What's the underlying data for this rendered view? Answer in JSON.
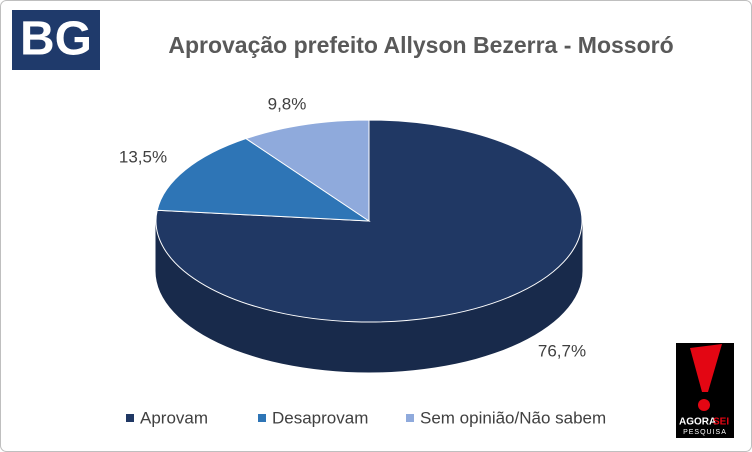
{
  "logos": {
    "left": "BG",
    "right_a": "AGORA",
    "right_b": "SEI",
    "right_c": "PESQUISA"
  },
  "chart_data": {
    "type": "pie",
    "title": "Aprovação prefeito Allyson Bezerra - Mossoró",
    "categories": [
      "Aprovam",
      "Desaprovam",
      "Sem opinião/Não sabem"
    ],
    "values": [
      76.7,
      13.5,
      9.8
    ],
    "value_labels": [
      "76,7%",
      "13,5%",
      "9,8%"
    ],
    "colors": [
      "#203864",
      "#2e75b6",
      "#8faadc"
    ],
    "legend": "bottom"
  }
}
